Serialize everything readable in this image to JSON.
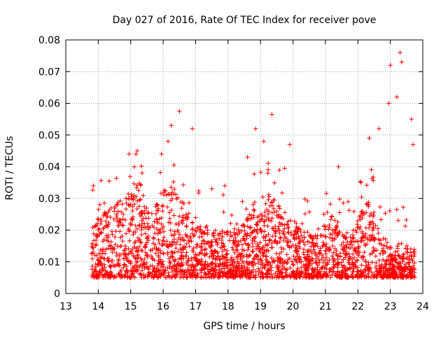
{
  "chart_data": {
    "type": "scatter",
    "title": "Day 027 of 2016, Rate Of TEC Index for receiver pove",
    "xlabel": "GPS time / hours",
    "ylabel": "ROTI / TECUs",
    "xlim": [
      13,
      24
    ],
    "ylim": [
      0,
      0.08
    ],
    "x_ticks": [
      "13",
      "14",
      "15",
      "16",
      "17",
      "18",
      "19",
      "20",
      "21",
      "22",
      "23",
      "24"
    ],
    "y_ticks": [
      "0",
      "0.01",
      "0.02",
      "0.03",
      "0.04",
      "0.05",
      "0.06",
      "0.07",
      "0.08"
    ],
    "grid": true,
    "marker": "+",
    "color": "#ff0000",
    "time_range": [
      13.8,
      23.75
    ],
    "series": [
      {
        "values_note": "Dense scatter of several thousand ROTI samples; representative extreme values listed",
        "points": [
          [
            13.85,
            0.034
          ],
          [
            14.05,
            0.028
          ],
          [
            14.2,
            0.025
          ],
          [
            14.4,
            0.027
          ],
          [
            14.6,
            0.028
          ],
          [
            14.95,
            0.044
          ],
          [
            15.2,
            0.045
          ],
          [
            15.35,
            0.038
          ],
          [
            15.95,
            0.044
          ],
          [
            16.15,
            0.048
          ],
          [
            16.25,
            0.053
          ],
          [
            16.5,
            0.0575
          ],
          [
            16.9,
            0.052
          ],
          [
            17.5,
            0.033
          ],
          [
            17.9,
            0.034
          ],
          [
            18.6,
            0.043
          ],
          [
            18.85,
            0.052
          ],
          [
            19.1,
            0.048
          ],
          [
            19.35,
            0.0565
          ],
          [
            19.9,
            0.047
          ],
          [
            20.95,
            0.025
          ],
          [
            21.4,
            0.04
          ],
          [
            22.1,
            0.035
          ],
          [
            22.35,
            0.049
          ],
          [
            22.65,
            0.052
          ],
          [
            22.95,
            0.06
          ],
          [
            23.0,
            0.072
          ],
          [
            23.2,
            0.062
          ],
          [
            23.3,
            0.076
          ],
          [
            23.35,
            0.073
          ],
          [
            23.65,
            0.055
          ],
          [
            23.7,
            0.047
          ]
        ]
      }
    ]
  }
}
